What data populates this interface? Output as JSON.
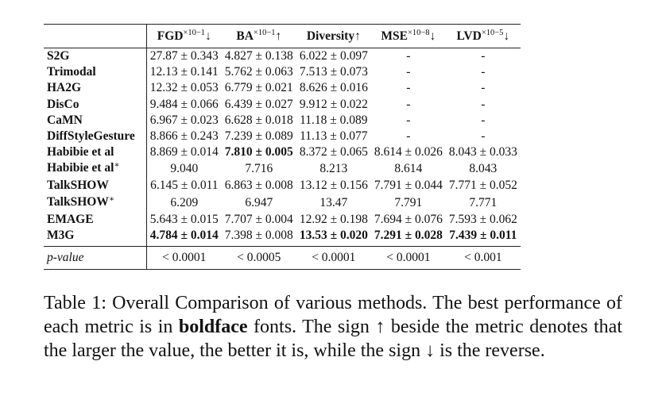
{
  "table": {
    "columns": [
      {
        "name": "FGD",
        "sup": "×10−1",
        "arrow": "↓"
      },
      {
        "name": "BA",
        "sup": "×10−1",
        "arrow": "↑"
      },
      {
        "name": "Diversity",
        "sup": "",
        "arrow": "↑"
      },
      {
        "name": "MSE",
        "sup": "×10−8",
        "arrow": "↓"
      },
      {
        "name": "LVD",
        "sup": "×10−5",
        "arrow": "↓"
      }
    ],
    "rows": [
      {
        "method": "S2G",
        "star": "",
        "cells": [
          "27.87 ± 0.343",
          "4.827 ± 0.138",
          "6.022 ± 0.097",
          "-",
          "-"
        ],
        "bold": [
          false,
          false,
          false,
          false,
          false
        ]
      },
      {
        "method": "Trimodal",
        "star": "",
        "cells": [
          "12.13 ± 0.141",
          "5.762 ± 0.063",
          "7.513 ± 0.073",
          "-",
          "-"
        ],
        "bold": [
          false,
          false,
          false,
          false,
          false
        ]
      },
      {
        "method": "HA2G",
        "star": "",
        "cells": [
          "12.32 ± 0.053",
          "6.779 ± 0.021",
          "8.626 ± 0.016",
          "-",
          "-"
        ],
        "bold": [
          false,
          false,
          false,
          false,
          false
        ]
      },
      {
        "method": "DisCo",
        "star": "",
        "cells": [
          "9.484 ± 0.066",
          "6.439 ± 0.027",
          "9.912 ± 0.022",
          "-",
          "-"
        ],
        "bold": [
          false,
          false,
          false,
          false,
          false
        ]
      },
      {
        "method": "CaMN",
        "star": "",
        "cells": [
          "6.967 ± 0.023",
          "6.628 ± 0.018",
          "11.18 ± 0.089",
          "-",
          "-"
        ],
        "bold": [
          false,
          false,
          false,
          false,
          false
        ]
      },
      {
        "method": "DiffStyleGesture",
        "star": "",
        "cells": [
          "8.866 ± 0.243",
          "7.239 ± 0.089",
          "11.13 ± 0.077",
          "-",
          "-"
        ],
        "bold": [
          false,
          false,
          false,
          false,
          false
        ]
      },
      {
        "method": "Habibie et al",
        "star": "",
        "cells": [
          "8.869 ± 0.014",
          "7.810 ± 0.005",
          "8.372 ± 0.065",
          "8.614 ± 0.026",
          "8.043 ± 0.033"
        ],
        "bold": [
          false,
          true,
          false,
          false,
          false
        ]
      },
      {
        "method": "Habibie et al",
        "star": "∗",
        "cells": [
          "9.040",
          "7.716",
          "8.213",
          "8.614",
          "8.043"
        ],
        "bold": [
          false,
          false,
          false,
          false,
          false
        ]
      },
      {
        "method": "TalkSHOW",
        "star": "",
        "cells": [
          "6.145 ± 0.011",
          "6.863 ± 0.008",
          "13.12 ± 0.156",
          "7.791 ± 0.044",
          "7.771 ± 0.052"
        ],
        "bold": [
          false,
          false,
          false,
          false,
          false
        ]
      },
      {
        "method": "TalkSHOW",
        "star": "∗",
        "cells": [
          "6.209",
          "6.947",
          "13.47",
          "7.791",
          "7.771"
        ],
        "bold": [
          false,
          false,
          false,
          false,
          false
        ]
      },
      {
        "method": "EMAGE",
        "star": "",
        "cells": [
          "5.643 ± 0.015",
          "7.707 ± 0.004",
          "12.92 ± 0.198",
          "7.694 ± 0.076",
          "7.593 ± 0.062"
        ],
        "bold": [
          false,
          false,
          false,
          false,
          false
        ]
      },
      {
        "method": "M3G",
        "star": "",
        "cells": [
          "4.784 ± 0.014",
          "7.398 ± 0.008",
          "13.53 ± 0.020",
          "7.291 ± 0.028",
          "7.439 ± 0.011"
        ],
        "bold": [
          true,
          false,
          true,
          true,
          true
        ]
      }
    ],
    "pvalue": {
      "label": "p-value",
      "cells": [
        "< 0.0001",
        "< 0.0005",
        "< 0.0001",
        "< 0.0001",
        "< 0.001"
      ]
    }
  },
  "caption": {
    "part1": "Table 1: Overall Comparison of various methods. The best performance of each metric is in ",
    "bold": "boldface",
    "part2": " fonts. The sign ↑ beside the metric denotes that the larger the value, the better it is, while the sign ↓ is the reverse."
  }
}
